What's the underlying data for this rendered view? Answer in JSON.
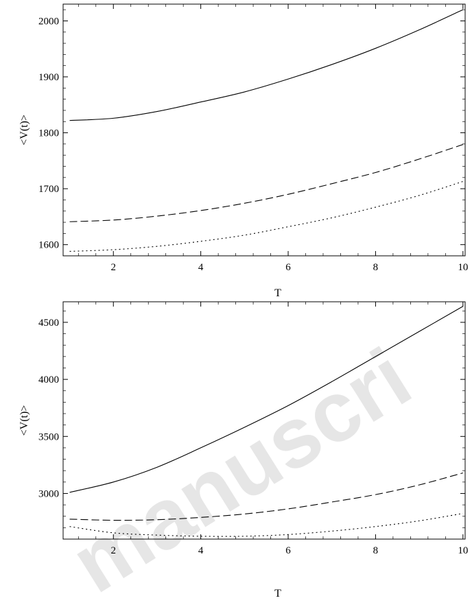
{
  "watermark": "manuscri",
  "chart_data": [
    {
      "type": "line",
      "xlabel": "T",
      "ylabel": "<V(t)>",
      "xlim": [
        0.85,
        10.05
      ],
      "ylim": [
        1580,
        2030
      ],
      "xticks": [
        2,
        4,
        6,
        8,
        10
      ],
      "yticks": [
        1600,
        1700,
        1800,
        1900,
        2000
      ],
      "x": [
        1,
        2,
        3,
        4,
        5,
        6,
        7,
        8,
        9,
        10
      ],
      "series": [
        {
          "style": "solid",
          "values": [
            1822,
            1826,
            1838,
            1855,
            1873,
            1896,
            1922,
            1951,
            1984,
            2020
          ]
        },
        {
          "style": "dashed",
          "values": [
            1641,
            1644,
            1651,
            1661,
            1674,
            1690,
            1709,
            1729,
            1753,
            1779
          ]
        },
        {
          "style": "dotted",
          "values": [
            1588,
            1591,
            1597,
            1606,
            1617,
            1632,
            1648,
            1667,
            1688,
            1713
          ]
        }
      ],
      "grid": false,
      "legend": "none"
    },
    {
      "type": "line",
      "xlabel": "T",
      "ylabel": "<V(t)>",
      "xlim": [
        0.85,
        10.05
      ],
      "ylim": [
        2600,
        4680
      ],
      "xticks": [
        2,
        4,
        6,
        8,
        10
      ],
      "yticks": [
        3000,
        3500,
        4000,
        4500
      ],
      "x": [
        1,
        2,
        3,
        4,
        5,
        6,
        7,
        8,
        9,
        10
      ],
      "series": [
        {
          "style": "solid",
          "values": [
            3010,
            3100,
            3230,
            3400,
            3580,
            3770,
            3980,
            4200,
            4420,
            4640
          ]
        },
        {
          "style": "dashed",
          "values": [
            2775,
            2765,
            2770,
            2790,
            2820,
            2865,
            2925,
            2990,
            3075,
            3180
          ]
        },
        {
          "style": "dotted",
          "values": [
            2710,
            2655,
            2635,
            2625,
            2625,
            2640,
            2670,
            2710,
            2760,
            2825
          ]
        }
      ],
      "grid": false,
      "legend": "none"
    }
  ]
}
